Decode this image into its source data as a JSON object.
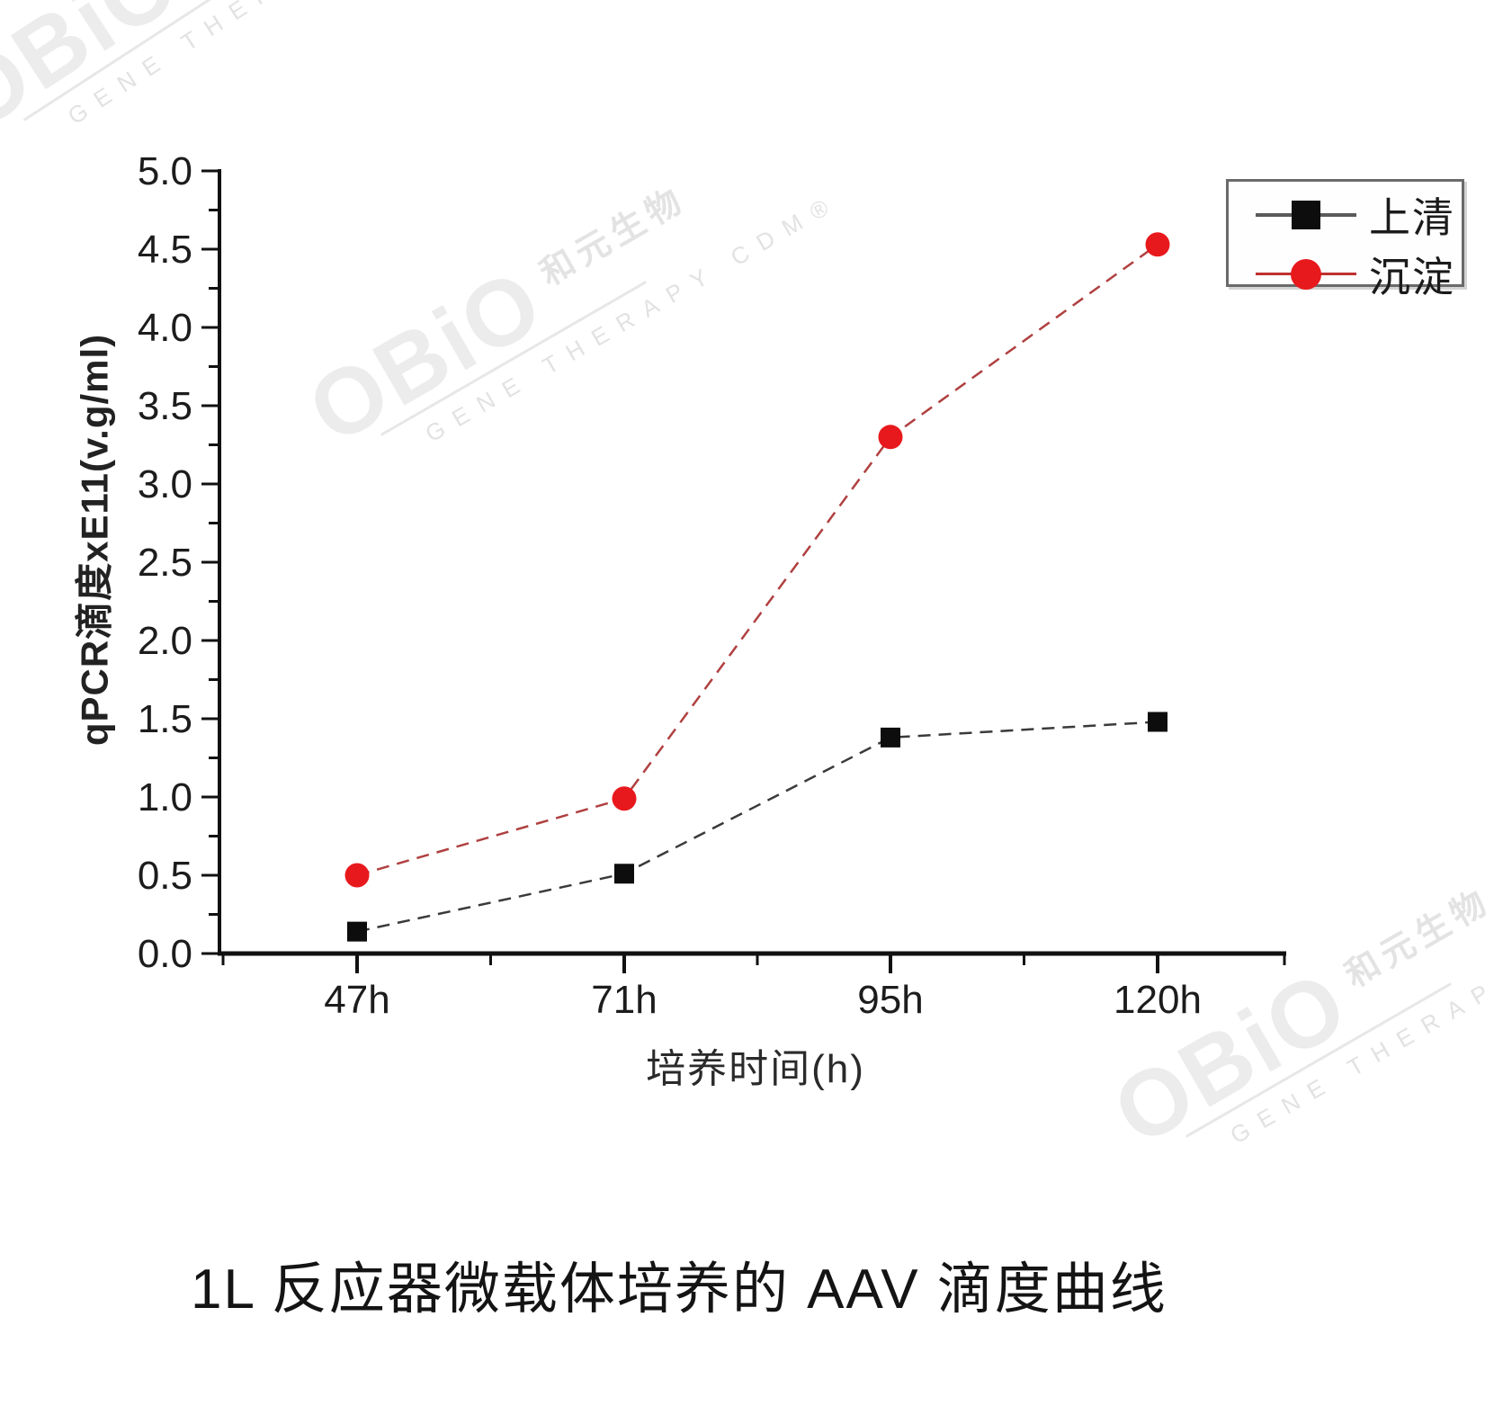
{
  "watermark": {
    "brand": "OBiO",
    "brand_cn": "和元生物",
    "tagline": "GENE THERAPY CDM®"
  },
  "chart_data": {
    "type": "line",
    "title": "1L 反应器微载体培养的 AAV 滴度曲线",
    "xlabel": "培养时间(h)",
    "ylabel": "qPCR滴度xE11(v.g/ml)",
    "categories": [
      "47h",
      "71h",
      "95h",
      "120h"
    ],
    "series": [
      {
        "name": "上清",
        "marker": "square",
        "marker_color": "#0d0d0d",
        "line_color": "#3a3a3a",
        "line_style": "dashed",
        "values": [
          0.14,
          0.51,
          1.38,
          1.48
        ]
      },
      {
        "name": "沉淀",
        "marker": "circle",
        "marker_color": "#e8191d",
        "line_color": "#b04040",
        "line_style": "dashed",
        "values": [
          0.5,
          0.99,
          3.3,
          4.53
        ]
      }
    ],
    "ylim": [
      0.0,
      5.0
    ],
    "y_major_step": 0.5,
    "y_minor_step": 0.25,
    "y_tick_labels": [
      "0.0",
      "0.5",
      "1.0",
      "1.5",
      "2.0",
      "2.5",
      "3.0",
      "3.5",
      "4.0",
      "4.5",
      "5.0"
    ],
    "grid": false,
    "legend_position": "top-right"
  }
}
